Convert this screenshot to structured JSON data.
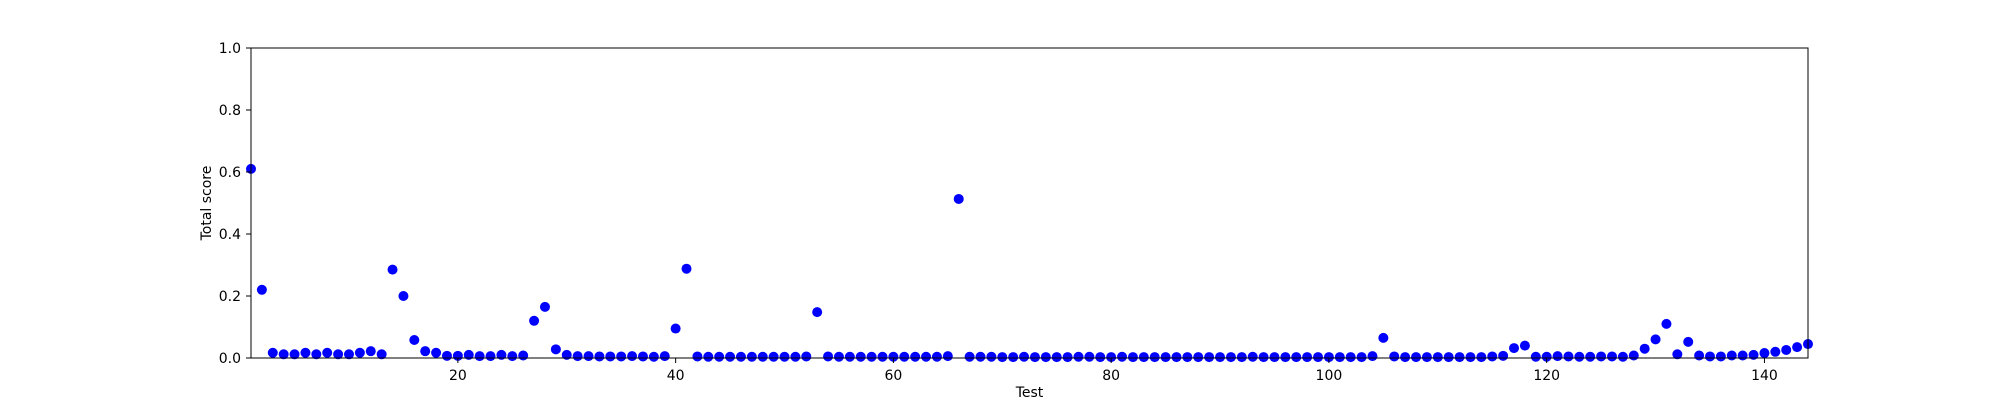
{
  "chart_data": {
    "type": "scatter",
    "title": "",
    "xlabel": "Test",
    "ylabel": "Total score",
    "xlim": [
      1,
      144
    ],
    "ylim": [
      0,
      1.0
    ],
    "xticks": [
      20,
      40,
      60,
      80,
      100,
      120,
      140
    ],
    "yticks": [
      0.0,
      0.2,
      0.4,
      0.6,
      0.8,
      1.0
    ],
    "ytick_labels": [
      "0.0",
      "0.2",
      "0.4",
      "0.6",
      "0.8",
      "1.0"
    ],
    "xtick_labels": [
      "20",
      "40",
      "60",
      "80",
      "100",
      "120",
      "140"
    ],
    "grid": false,
    "marker_color": "#0000ff",
    "series": [
      {
        "x": [
          1,
          2,
          3,
          4,
          5,
          6,
          7,
          8,
          9,
          10,
          11,
          12,
          13,
          14,
          15,
          16,
          17,
          18,
          19,
          20,
          21,
          22,
          23,
          24,
          25,
          26,
          27,
          28,
          29,
          30,
          31,
          32,
          33,
          34,
          35,
          36,
          37,
          38,
          39,
          40,
          41,
          42,
          43,
          44,
          45,
          46,
          47,
          48,
          49,
          50,
          51,
          52,
          53,
          54,
          55,
          56,
          57,
          58,
          59,
          60,
          61,
          62,
          63,
          64,
          65,
          66,
          67,
          68,
          69,
          70,
          71,
          72,
          73,
          74,
          75,
          76,
          77,
          78,
          79,
          80,
          81,
          82,
          83,
          84,
          85,
          86,
          87,
          88,
          89,
          90,
          91,
          92,
          93,
          94,
          95,
          96,
          97,
          98,
          99,
          100,
          101,
          102,
          103,
          104,
          105,
          106,
          107,
          108,
          109,
          110,
          111,
          112,
          113,
          114,
          115,
          116,
          117,
          118,
          119,
          120,
          121,
          122,
          123,
          124,
          125,
          126,
          127,
          128,
          129,
          130,
          131,
          132,
          133,
          134,
          135,
          136,
          137,
          138,
          139,
          140,
          141,
          142,
          143,
          144
        ],
        "values": [
          0.61,
          0.22,
          0.017,
          0.012,
          0.012,
          0.017,
          0.012,
          0.017,
          0.012,
          0.012,
          0.017,
          0.022,
          0.012,
          0.285,
          0.2,
          0.058,
          0.022,
          0.017,
          0.007,
          0.007,
          0.01,
          0.006,
          0.006,
          0.01,
          0.006,
          0.008,
          0.12,
          0.165,
          0.028,
          0.01,
          0.006,
          0.006,
          0.005,
          0.005,
          0.005,
          0.006,
          0.005,
          0.004,
          0.006,
          0.095,
          0.288,
          0.005,
          0.004,
          0.004,
          0.004,
          0.004,
          0.004,
          0.004,
          0.004,
          0.004,
          0.004,
          0.005,
          0.148,
          0.005,
          0.004,
          0.004,
          0.004,
          0.004,
          0.004,
          0.004,
          0.004,
          0.004,
          0.004,
          0.004,
          0.006,
          0.513,
          0.004,
          0.004,
          0.004,
          0.003,
          0.003,
          0.004,
          0.003,
          0.003,
          0.003,
          0.003,
          0.004,
          0.004,
          0.003,
          0.003,
          0.004,
          0.003,
          0.003,
          0.003,
          0.003,
          0.003,
          0.003,
          0.003,
          0.003,
          0.003,
          0.003,
          0.003,
          0.004,
          0.003,
          0.003,
          0.003,
          0.003,
          0.003,
          0.003,
          0.003,
          0.003,
          0.003,
          0.003,
          0.006,
          0.065,
          0.005,
          0.003,
          0.003,
          0.003,
          0.003,
          0.003,
          0.003,
          0.003,
          0.003,
          0.005,
          0.007,
          0.032,
          0.04,
          0.004,
          0.004,
          0.006,
          0.005,
          0.004,
          0.004,
          0.005,
          0.005,
          0.004,
          0.008,
          0.03,
          0.06,
          0.11,
          0.012,
          0.052,
          0.008,
          0.005,
          0.005,
          0.008,
          0.008,
          0.01,
          0.016,
          0.02,
          0.026,
          0.035,
          0.045
        ]
      }
    ]
  }
}
